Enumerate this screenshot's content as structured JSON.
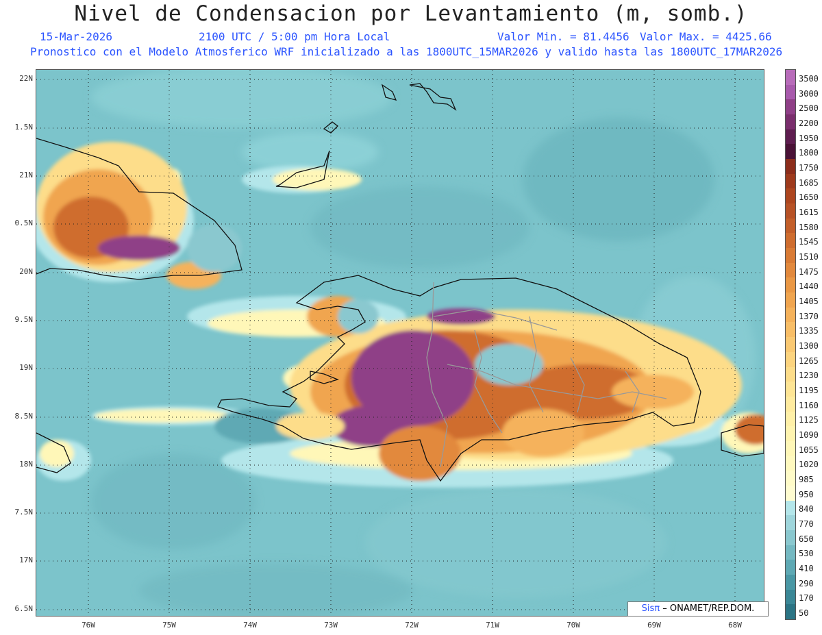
{
  "header": {
    "title": "Nivel de Condensacion por Levantamiento (m, somb.)",
    "date": "15-Mar-2026",
    "time": "2100 UTC / 5:00 pm Hora Local",
    "valmin": "Valor Min. = 81.4456",
    "valmax": "Valor Max. = 4425.66",
    "model": "Pronostico con el Modelo Atmosferico WRF inicializado a las 1800UTC_15MAR2026 y valido hasta las  1800UTC_17MAR2026"
  },
  "lat_labels": [
    "22N",
    "1.5N",
    "21N",
    "0.5N",
    "20N",
    "9.5N",
    "19N",
    "8.5N",
    "18N",
    "7.5N",
    "17N",
    "6.5N"
  ],
  "lon_labels": [
    "76W",
    "75W",
    "74W",
    "73W",
    "72W",
    "71W",
    "70W",
    "69W",
    "68W"
  ],
  "legend": {
    "labels": [
      "3500",
      "3000",
      "2500",
      "2200",
      "1950",
      "1800",
      "1750",
      "1685",
      "1650",
      "1615",
      "1580",
      "1545",
      "1510",
      "1475",
      "1440",
      "1405",
      "1370",
      "1335",
      "1300",
      "1265",
      "1230",
      "1195",
      "1160",
      "1125",
      "1090",
      "1055",
      "1020",
      "985",
      "950",
      "840",
      "770",
      "650",
      "530",
      "410",
      "290",
      "170",
      "50"
    ],
    "colors": [
      "#b86cba",
      "#a85aac",
      "#8f3f87",
      "#7a2e6d",
      "#5e1d4f",
      "#4a1236",
      "#8c2d1b",
      "#9e3a1c",
      "#ad461f",
      "#b75226",
      "#c35f2a",
      "#cf6d2f",
      "#d97b35",
      "#e2893d",
      "#ea9845",
      "#f0a54f",
      "#f5b25b",
      "#f8be67",
      "#fac973",
      "#fcd47f",
      "#fddd8a",
      "#fee595",
      "#ffeb9f",
      "#fff0a8",
      "#fff4b0",
      "#fff7b8",
      "#fff9bf",
      "#fffbc8",
      "#fffcd0",
      "#b4e6ea",
      "#9fd6dc",
      "#8ac8cf",
      "#75b9c2",
      "#5ea9b4",
      "#4a98a5",
      "#3a8796",
      "#2b7484"
    ]
  },
  "credit": {
    "sis": "Sis",
    "pi": "π",
    "text": "– ONAMET/REP.DOM."
  },
  "colors": {
    "ocean": "#7cc4cb",
    "title_blue": "#2b54ff"
  }
}
